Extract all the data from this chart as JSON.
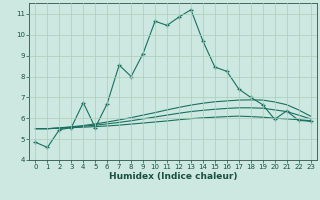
{
  "xlabel": "Humidex (Indice chaleur)",
  "background_color": "#cce8e0",
  "grid_color": "#aaccbb",
  "line_color": "#1a7060",
  "xlim": [
    -0.5,
    23.5
  ],
  "ylim": [
    4,
    11.5
  ],
  "yticks": [
    4,
    5,
    6,
    7,
    8,
    9,
    10,
    11
  ],
  "xticks": [
    0,
    1,
    2,
    3,
    4,
    5,
    6,
    7,
    8,
    9,
    10,
    11,
    12,
    13,
    14,
    15,
    16,
    17,
    18,
    19,
    20,
    21,
    22,
    23
  ],
  "main_x": [
    0,
    1,
    2,
    3,
    4,
    5,
    6,
    7,
    8,
    9,
    10,
    11,
    12,
    13,
    14,
    15,
    16,
    17,
    18,
    19,
    20,
    21,
    22,
    23
  ],
  "main_y": [
    4.85,
    4.6,
    5.45,
    5.55,
    6.75,
    5.55,
    6.7,
    8.55,
    8.0,
    9.1,
    10.65,
    10.45,
    10.85,
    11.2,
    9.7,
    8.45,
    8.25,
    7.4,
    7.0,
    6.65,
    5.95,
    6.35,
    5.9,
    5.85
  ],
  "smooth1_x": [
    0,
    1,
    2,
    3,
    4,
    5,
    6,
    7,
    8,
    9,
    10,
    11,
    12,
    13,
    14,
    15,
    16,
    17,
    18,
    19,
    20,
    21,
    22,
    23
  ],
  "smooth1_y": [
    5.5,
    5.5,
    5.52,
    5.55,
    5.57,
    5.6,
    5.63,
    5.67,
    5.72,
    5.77,
    5.82,
    5.87,
    5.93,
    5.98,
    6.02,
    6.05,
    6.08,
    6.1,
    6.08,
    6.05,
    6.0,
    5.97,
    5.93,
    5.88
  ],
  "smooth2_x": [
    0,
    1,
    2,
    3,
    4,
    5,
    6,
    7,
    8,
    9,
    10,
    11,
    12,
    13,
    14,
    15,
    16,
    17,
    18,
    19,
    20,
    21,
    22,
    23
  ],
  "smooth2_y": [
    5.5,
    5.5,
    5.53,
    5.57,
    5.62,
    5.67,
    5.73,
    5.8,
    5.88,
    5.97,
    6.06,
    6.15,
    6.24,
    6.32,
    6.38,
    6.43,
    6.47,
    6.5,
    6.5,
    6.48,
    6.4,
    6.32,
    6.15,
    5.97
  ],
  "smooth3_x": [
    0,
    1,
    2,
    3,
    4,
    5,
    6,
    7,
    8,
    9,
    10,
    11,
    12,
    13,
    14,
    15,
    16,
    17,
    18,
    19,
    20,
    21,
    22,
    23
  ],
  "smooth3_y": [
    5.5,
    5.5,
    5.54,
    5.59,
    5.65,
    5.73,
    5.82,
    5.92,
    6.03,
    6.15,
    6.27,
    6.4,
    6.52,
    6.63,
    6.72,
    6.79,
    6.83,
    6.87,
    6.88,
    6.87,
    6.78,
    6.65,
    6.4,
    6.1
  ]
}
